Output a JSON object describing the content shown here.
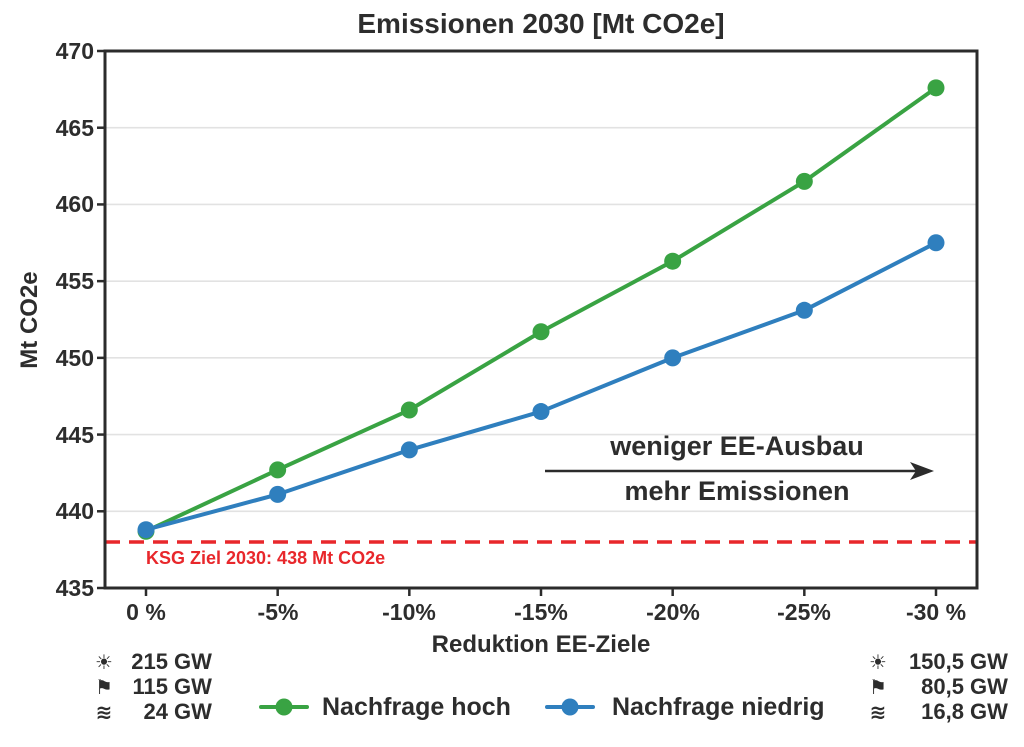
{
  "chart_data": {
    "type": "line",
    "title": "Emissionen 2030 [Mt CO2e]",
    "xlabel": "Reduktion EE-Ziele",
    "ylabel": "Mt CO2e",
    "x_tick_labels": [
      "0 %",
      "-5%",
      "-10%",
      "-15%",
      "-20%",
      "-25%",
      "-30 %"
    ],
    "y_ticks_top_to_bottom": [
      470,
      465,
      460,
      455,
      450,
      445,
      440,
      435
    ],
    "y_gridlines": [
      465,
      460,
      455,
      450,
      445,
      440
    ],
    "ylim": [
      435,
      470
    ],
    "grid": "horizontal",
    "legend_position": "bottom-center",
    "series": [
      {
        "name": "Nachfrage hoch",
        "color": "#39a343",
        "values": [
          438.7,
          442.7,
          446.6,
          451.7,
          456.3,
          461.5,
          467.6
        ]
      },
      {
        "name": "Nachfrage niedrig",
        "color": "#2f7fbe",
        "values": [
          438.8,
          441.1,
          444.0,
          446.5,
          450.0,
          453.1,
          457.5
        ]
      }
    ],
    "reference_line": {
      "value": 438,
      "label": "KSG Ziel 2030: 438 Mt CO2e",
      "color": "#e8272b",
      "style": "dashed"
    },
    "annotation": {
      "line1": "weniger EE-Ausbau",
      "line2": "mehr Emissionen",
      "arrow_direction": "right"
    },
    "colors": {
      "axis": "#2b2b2b",
      "grid": "#e2e2e2",
      "text": "#2d2d2d"
    }
  },
  "gw_annotations": {
    "left": [
      {
        "icon": "sun-icon",
        "glyph": "☀",
        "value": "215",
        "unit": "GW"
      },
      {
        "icon": "flag-icon",
        "glyph": "⚑",
        "value": "115",
        "unit": "GW"
      },
      {
        "icon": "waves-icon",
        "glyph": "≋",
        "value": "24",
        "unit": "GW"
      }
    ],
    "right": [
      {
        "icon": "sun-icon",
        "glyph": "☀",
        "value": "150,5",
        "unit": "GW"
      },
      {
        "icon": "flag-icon",
        "glyph": "⚑",
        "value": "80,5",
        "unit": "GW"
      },
      {
        "icon": "waves-icon",
        "glyph": "≋",
        "value": "16,8",
        "unit": "GW"
      }
    ]
  }
}
